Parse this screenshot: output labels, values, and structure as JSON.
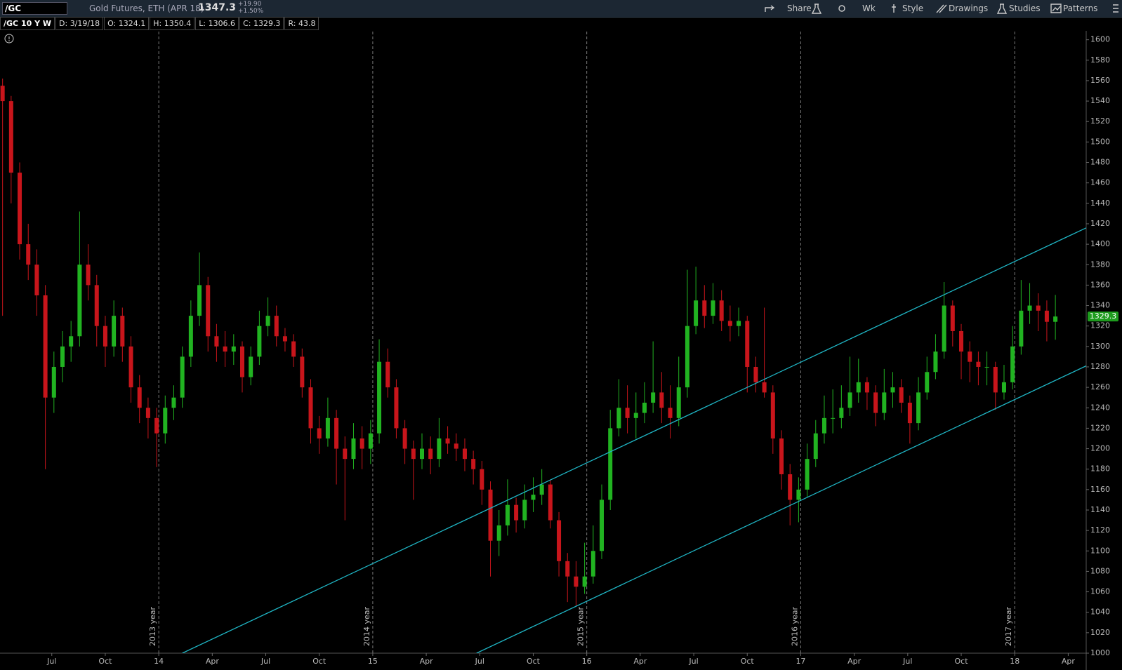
{
  "toolbar": {
    "symbol": "/GC",
    "description": "Gold Futures, ETH (APR 18)",
    "last": "1347.3",
    "change": "+19.90",
    "change_pct": "+1.50%",
    "buttons": [
      "Share",
      "Wk",
      "Style",
      "Drawings",
      "Studies",
      "Patterns"
    ]
  },
  "info_bar": [
    "/GC 10 Y W",
    "D: 3/19/18",
    "O: 1324.1",
    "H: 1350.4",
    "L: 1306.6",
    "C: 1329.3",
    "R: 43.8"
  ],
  "chart_data": {
    "type": "candlestick",
    "up_color": "#21b321",
    "down_color": "#c8151b",
    "grid": false,
    "xlim": [
      2013.258,
      2018.334
    ],
    "ylim": [
      1000,
      1608
    ],
    "yticks": [
      1000,
      1020,
      1040,
      1060,
      1080,
      1100,
      1120,
      1140,
      1160,
      1180,
      1200,
      1220,
      1240,
      1260,
      1280,
      1300,
      1320,
      1340,
      1360,
      1380,
      1400,
      1420,
      1440,
      1460,
      1480,
      1500,
      1520,
      1540,
      1560,
      1580,
      1600
    ],
    "xticks": [
      {
        "value": 2013.5,
        "label": "Jul"
      },
      {
        "value": 2013.75,
        "label": "Oct"
      },
      {
        "value": 2014,
        "label": "14"
      },
      {
        "value": 2014.25,
        "label": "Apr"
      },
      {
        "value": 2014.5,
        "label": "Jul"
      },
      {
        "value": 2014.75,
        "label": "Oct"
      },
      {
        "value": 2015,
        "label": "15"
      },
      {
        "value": 2015.25,
        "label": "Apr"
      },
      {
        "value": 2015.5,
        "label": "Jul"
      },
      {
        "value": 2015.75,
        "label": "Oct"
      },
      {
        "value": 2016,
        "label": "16"
      },
      {
        "value": 2016.25,
        "label": "Apr"
      },
      {
        "value": 2016.5,
        "label": "Jul"
      },
      {
        "value": 2016.75,
        "label": "Oct"
      },
      {
        "value": 2017,
        "label": "17"
      },
      {
        "value": 2017.25,
        "label": "Apr"
      },
      {
        "value": 2017.5,
        "label": "Jul"
      },
      {
        "value": 2017.75,
        "label": "Oct"
      },
      {
        "value": 2018,
        "label": "18"
      },
      {
        "value": 2018.25,
        "label": "Apr"
      }
    ],
    "year_markers": [
      {
        "value": 2014,
        "label": "2013 year"
      },
      {
        "value": 2015,
        "label": "2014 year"
      },
      {
        "value": 2016,
        "label": "2015 year"
      },
      {
        "value": 2017,
        "label": "2016 year"
      },
      {
        "value": 2018,
        "label": "2017 year"
      }
    ],
    "trendlines": [
      {
        "color": "#1fb5c4",
        "x": [
          2014.11,
          2018.334
        ],
        "y": [
          1000,
          1416
        ]
      },
      {
        "color": "#1fb5c4",
        "x": [
          2015.485,
          2018.334
        ],
        "y": [
          1000,
          1281
        ]
      }
    ],
    "x": [
      2013.27,
      2013.31,
      2013.35,
      2013.39,
      2013.43,
      2013.47,
      2013.51,
      2013.55,
      2013.59,
      2013.63,
      2013.67,
      2013.71,
      2013.75,
      2013.79,
      2013.83,
      2013.87,
      2013.91,
      2013.95,
      2013.99,
      2014.03,
      2014.07,
      2014.11,
      2014.15,
      2014.19,
      2014.23,
      2014.27,
      2014.31,
      2014.35,
      2014.39,
      2014.43,
      2014.47,
      2014.51,
      2014.55,
      2014.59,
      2014.63,
      2014.67,
      2014.71,
      2014.75,
      2014.79,
      2014.83,
      2014.87,
      2014.91,
      2014.95,
      2014.99,
      2015.03,
      2015.07,
      2015.11,
      2015.15,
      2015.19,
      2015.23,
      2015.27,
      2015.31,
      2015.35,
      2015.39,
      2015.43,
      2015.47,
      2015.51,
      2015.55,
      2015.59,
      2015.63,
      2015.67,
      2015.71,
      2015.75,
      2015.79,
      2015.83,
      2015.87,
      2015.91,
      2015.95,
      2015.99,
      2016.03,
      2016.07,
      2016.11,
      2016.15,
      2016.19,
      2016.23,
      2016.27,
      2016.31,
      2016.35,
      2016.39,
      2016.43,
      2016.47,
      2016.51,
      2016.55,
      2016.59,
      2016.63,
      2016.67,
      2016.71,
      2016.75,
      2016.79,
      2016.83,
      2016.87,
      2016.91,
      2016.95,
      2016.99,
      2017.03,
      2017.07,
      2017.11,
      2017.15,
      2017.19,
      2017.23,
      2017.27,
      2017.31,
      2017.35,
      2017.39,
      2017.43,
      2017.47,
      2017.51,
      2017.55,
      2017.59,
      2017.63,
      2017.67,
      2017.71,
      2017.75,
      2017.79,
      2017.83,
      2017.87,
      2017.91,
      2017.95,
      2017.99,
      2018.03,
      2018.07,
      2018.11,
      2018.15,
      2018.19
    ],
    "candles": [
      [
        1555,
        1562,
        1330,
        1540
      ],
      [
        1540,
        1545,
        1440,
        1470
      ],
      [
        1470,
        1480,
        1385,
        1400
      ],
      [
        1400,
        1420,
        1365,
        1380
      ],
      [
        1380,
        1395,
        1330,
        1350
      ],
      [
        1350,
        1360,
        1180,
        1250
      ],
      [
        1250,
        1295,
        1235,
        1280
      ],
      [
        1280,
        1315,
        1265,
        1300
      ],
      [
        1300,
        1325,
        1285,
        1310
      ],
      [
        1310,
        1432,
        1300,
        1380
      ],
      [
        1380,
        1400,
        1345,
        1360
      ],
      [
        1360,
        1370,
        1300,
        1320
      ],
      [
        1320,
        1330,
        1280,
        1300
      ],
      [
        1300,
        1345,
        1290,
        1330
      ],
      [
        1330,
        1338,
        1285,
        1300
      ],
      [
        1300,
        1310,
        1245,
        1260
      ],
      [
        1260,
        1272,
        1225,
        1240
      ],
      [
        1240,
        1250,
        1210,
        1230
      ],
      [
        1230,
        1240,
        1182,
        1215
      ],
      [
        1215,
        1252,
        1205,
        1240
      ],
      [
        1240,
        1262,
        1228,
        1250
      ],
      [
        1250,
        1300,
        1240,
        1290
      ],
      [
        1290,
        1345,
        1280,
        1330
      ],
      [
        1330,
        1392,
        1320,
        1360
      ],
      [
        1360,
        1368,
        1295,
        1310
      ],
      [
        1310,
        1322,
        1285,
        1300
      ],
      [
        1300,
        1315,
        1280,
        1295
      ],
      [
        1295,
        1312,
        1282,
        1300
      ],
      [
        1300,
        1305,
        1255,
        1270
      ],
      [
        1270,
        1300,
        1262,
        1290
      ],
      [
        1290,
        1335,
        1282,
        1320
      ],
      [
        1320,
        1348,
        1310,
        1330
      ],
      [
        1330,
        1340,
        1300,
        1310
      ],
      [
        1310,
        1318,
        1295,
        1305
      ],
      [
        1305,
        1312,
        1280,
        1290
      ],
      [
        1290,
        1298,
        1250,
        1260
      ],
      [
        1260,
        1268,
        1205,
        1220
      ],
      [
        1220,
        1232,
        1195,
        1210
      ],
      [
        1210,
        1250,
        1202,
        1230
      ],
      [
        1230,
        1238,
        1165,
        1200
      ],
      [
        1200,
        1212,
        1130,
        1190
      ],
      [
        1190,
        1225,
        1180,
        1210
      ],
      [
        1210,
        1222,
        1180,
        1200
      ],
      [
        1200,
        1228,
        1185,
        1215
      ],
      [
        1215,
        1307,
        1205,
        1285
      ],
      [
        1285,
        1298,
        1250,
        1260
      ],
      [
        1260,
        1268,
        1210,
        1220
      ],
      [
        1220,
        1228,
        1185,
        1200
      ],
      [
        1200,
        1208,
        1150,
        1190
      ],
      [
        1190,
        1215,
        1180,
        1200
      ],
      [
        1200,
        1212,
        1175,
        1190
      ],
      [
        1190,
        1230,
        1182,
        1210
      ],
      [
        1210,
        1222,
        1195,
        1205
      ],
      [
        1205,
        1215,
        1188,
        1200
      ],
      [
        1200,
        1210,
        1178,
        1190
      ],
      [
        1190,
        1198,
        1165,
        1180
      ],
      [
        1180,
        1188,
        1145,
        1160
      ],
      [
        1160,
        1168,
        1075,
        1110
      ],
      [
        1110,
        1140,
        1095,
        1125
      ],
      [
        1125,
        1170,
        1115,
        1145
      ],
      [
        1145,
        1152,
        1118,
        1130
      ],
      [
        1130,
        1165,
        1122,
        1150
      ],
      [
        1150,
        1172,
        1138,
        1155
      ],
      [
        1155,
        1180,
        1145,
        1165
      ],
      [
        1165,
        1170,
        1122,
        1130
      ],
      [
        1130,
        1138,
        1075,
        1090
      ],
      [
        1090,
        1098,
        1050,
        1075
      ],
      [
        1075,
        1090,
        1046,
        1065
      ],
      [
        1065,
        1108,
        1058,
        1075
      ],
      [
        1075,
        1125,
        1068,
        1100
      ],
      [
        1100,
        1165,
        1092,
        1150
      ],
      [
        1150,
        1238,
        1140,
        1220
      ],
      [
        1220,
        1268,
        1212,
        1240
      ],
      [
        1240,
        1262,
        1215,
        1230
      ],
      [
        1230,
        1255,
        1210,
        1235
      ],
      [
        1235,
        1265,
        1225,
        1245
      ],
      [
        1245,
        1305,
        1235,
        1255
      ],
      [
        1255,
        1275,
        1225,
        1240
      ],
      [
        1240,
        1262,
        1210,
        1230
      ],
      [
        1230,
        1290,
        1222,
        1260
      ],
      [
        1260,
        1375,
        1250,
        1320
      ],
      [
        1320,
        1378,
        1312,
        1345
      ],
      [
        1345,
        1360,
        1318,
        1330
      ],
      [
        1330,
        1362,
        1322,
        1345
      ],
      [
        1345,
        1355,
        1315,
        1325
      ],
      [
        1325,
        1340,
        1305,
        1320
      ],
      [
        1320,
        1338,
        1310,
        1325
      ],
      [
        1325,
        1330,
        1255,
        1280
      ],
      [
        1280,
        1290,
        1255,
        1265
      ],
      [
        1265,
        1338,
        1250,
        1255
      ],
      [
        1255,
        1262,
        1195,
        1210
      ],
      [
        1210,
        1218,
        1160,
        1175
      ],
      [
        1175,
        1185,
        1125,
        1150
      ],
      [
        1150,
        1172,
        1128,
        1160
      ],
      [
        1160,
        1205,
        1152,
        1190
      ],
      [
        1190,
        1228,
        1182,
        1215
      ],
      [
        1215,
        1252,
        1205,
        1230
      ],
      [
        1230,
        1258,
        1215,
        1230
      ],
      [
        1230,
        1262,
        1220,
        1240
      ],
      [
        1240,
        1290,
        1232,
        1255
      ],
      [
        1255,
        1288,
        1245,
        1265
      ],
      [
        1265,
        1270,
        1238,
        1255
      ],
      [
        1255,
        1262,
        1222,
        1235
      ],
      [
        1235,
        1278,
        1228,
        1255
      ],
      [
        1255,
        1275,
        1240,
        1260
      ],
      [
        1260,
        1268,
        1235,
        1245
      ],
      [
        1245,
        1252,
        1205,
        1225
      ],
      [
        1225,
        1270,
        1218,
        1255
      ],
      [
        1255,
        1290,
        1248,
        1275
      ],
      [
        1275,
        1312,
        1268,
        1295
      ],
      [
        1295,
        1363,
        1288,
        1340
      ],
      [
        1340,
        1345,
        1300,
        1315
      ],
      [
        1315,
        1322,
        1268,
        1295
      ],
      [
        1295,
        1305,
        1265,
        1285
      ],
      [
        1285,
        1295,
        1262,
        1280
      ],
      [
        1280,
        1295,
        1262,
        1280
      ],
      [
        1280,
        1285,
        1238,
        1255
      ],
      [
        1255,
        1282,
        1248,
        1265
      ],
      [
        1265,
        1320,
        1258,
        1300
      ],
      [
        1300,
        1365,
        1292,
        1335
      ],
      [
        1335,
        1362,
        1322,
        1340
      ],
      [
        1340,
        1352,
        1315,
        1335
      ],
      [
        1335,
        1345,
        1305,
        1324.1
      ],
      [
        1324.1,
        1350.4,
        1306.6,
        1329.3
      ]
    ]
  }
}
